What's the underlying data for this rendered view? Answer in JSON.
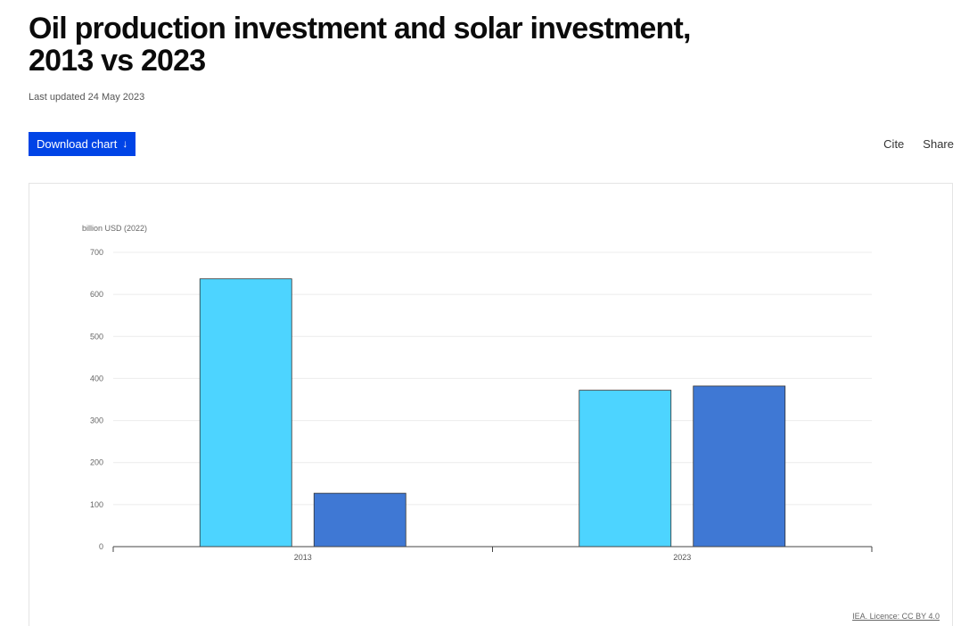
{
  "header": {
    "title": "Oil production investment and solar investment, 2013 vs 2023",
    "last_updated": "Last updated 24 May 2023"
  },
  "toolbar": {
    "download_label": "Download chart",
    "cite_label": "Cite",
    "share_label": "Share"
  },
  "footer": {
    "licence": "IEA. Licence: CC BY 4.0"
  },
  "colors": {
    "oil": "#4dd4ff",
    "solar": "#3f78d4",
    "button": "#0044e6"
  },
  "chart_data": {
    "type": "bar",
    "ylabel": "billion USD (2022)",
    "categories": [
      "2013",
      "2023"
    ],
    "ylim": [
      0,
      700
    ],
    "yticks": [
      0,
      100,
      200,
      300,
      400,
      500,
      600,
      700
    ],
    "grid": true,
    "series": [
      {
        "values": [
          637,
          372
        ],
        "color": "#4dd4ff"
      },
      {
        "values": [
          127,
          382
        ],
        "color": "#3f78d4"
      }
    ]
  }
}
